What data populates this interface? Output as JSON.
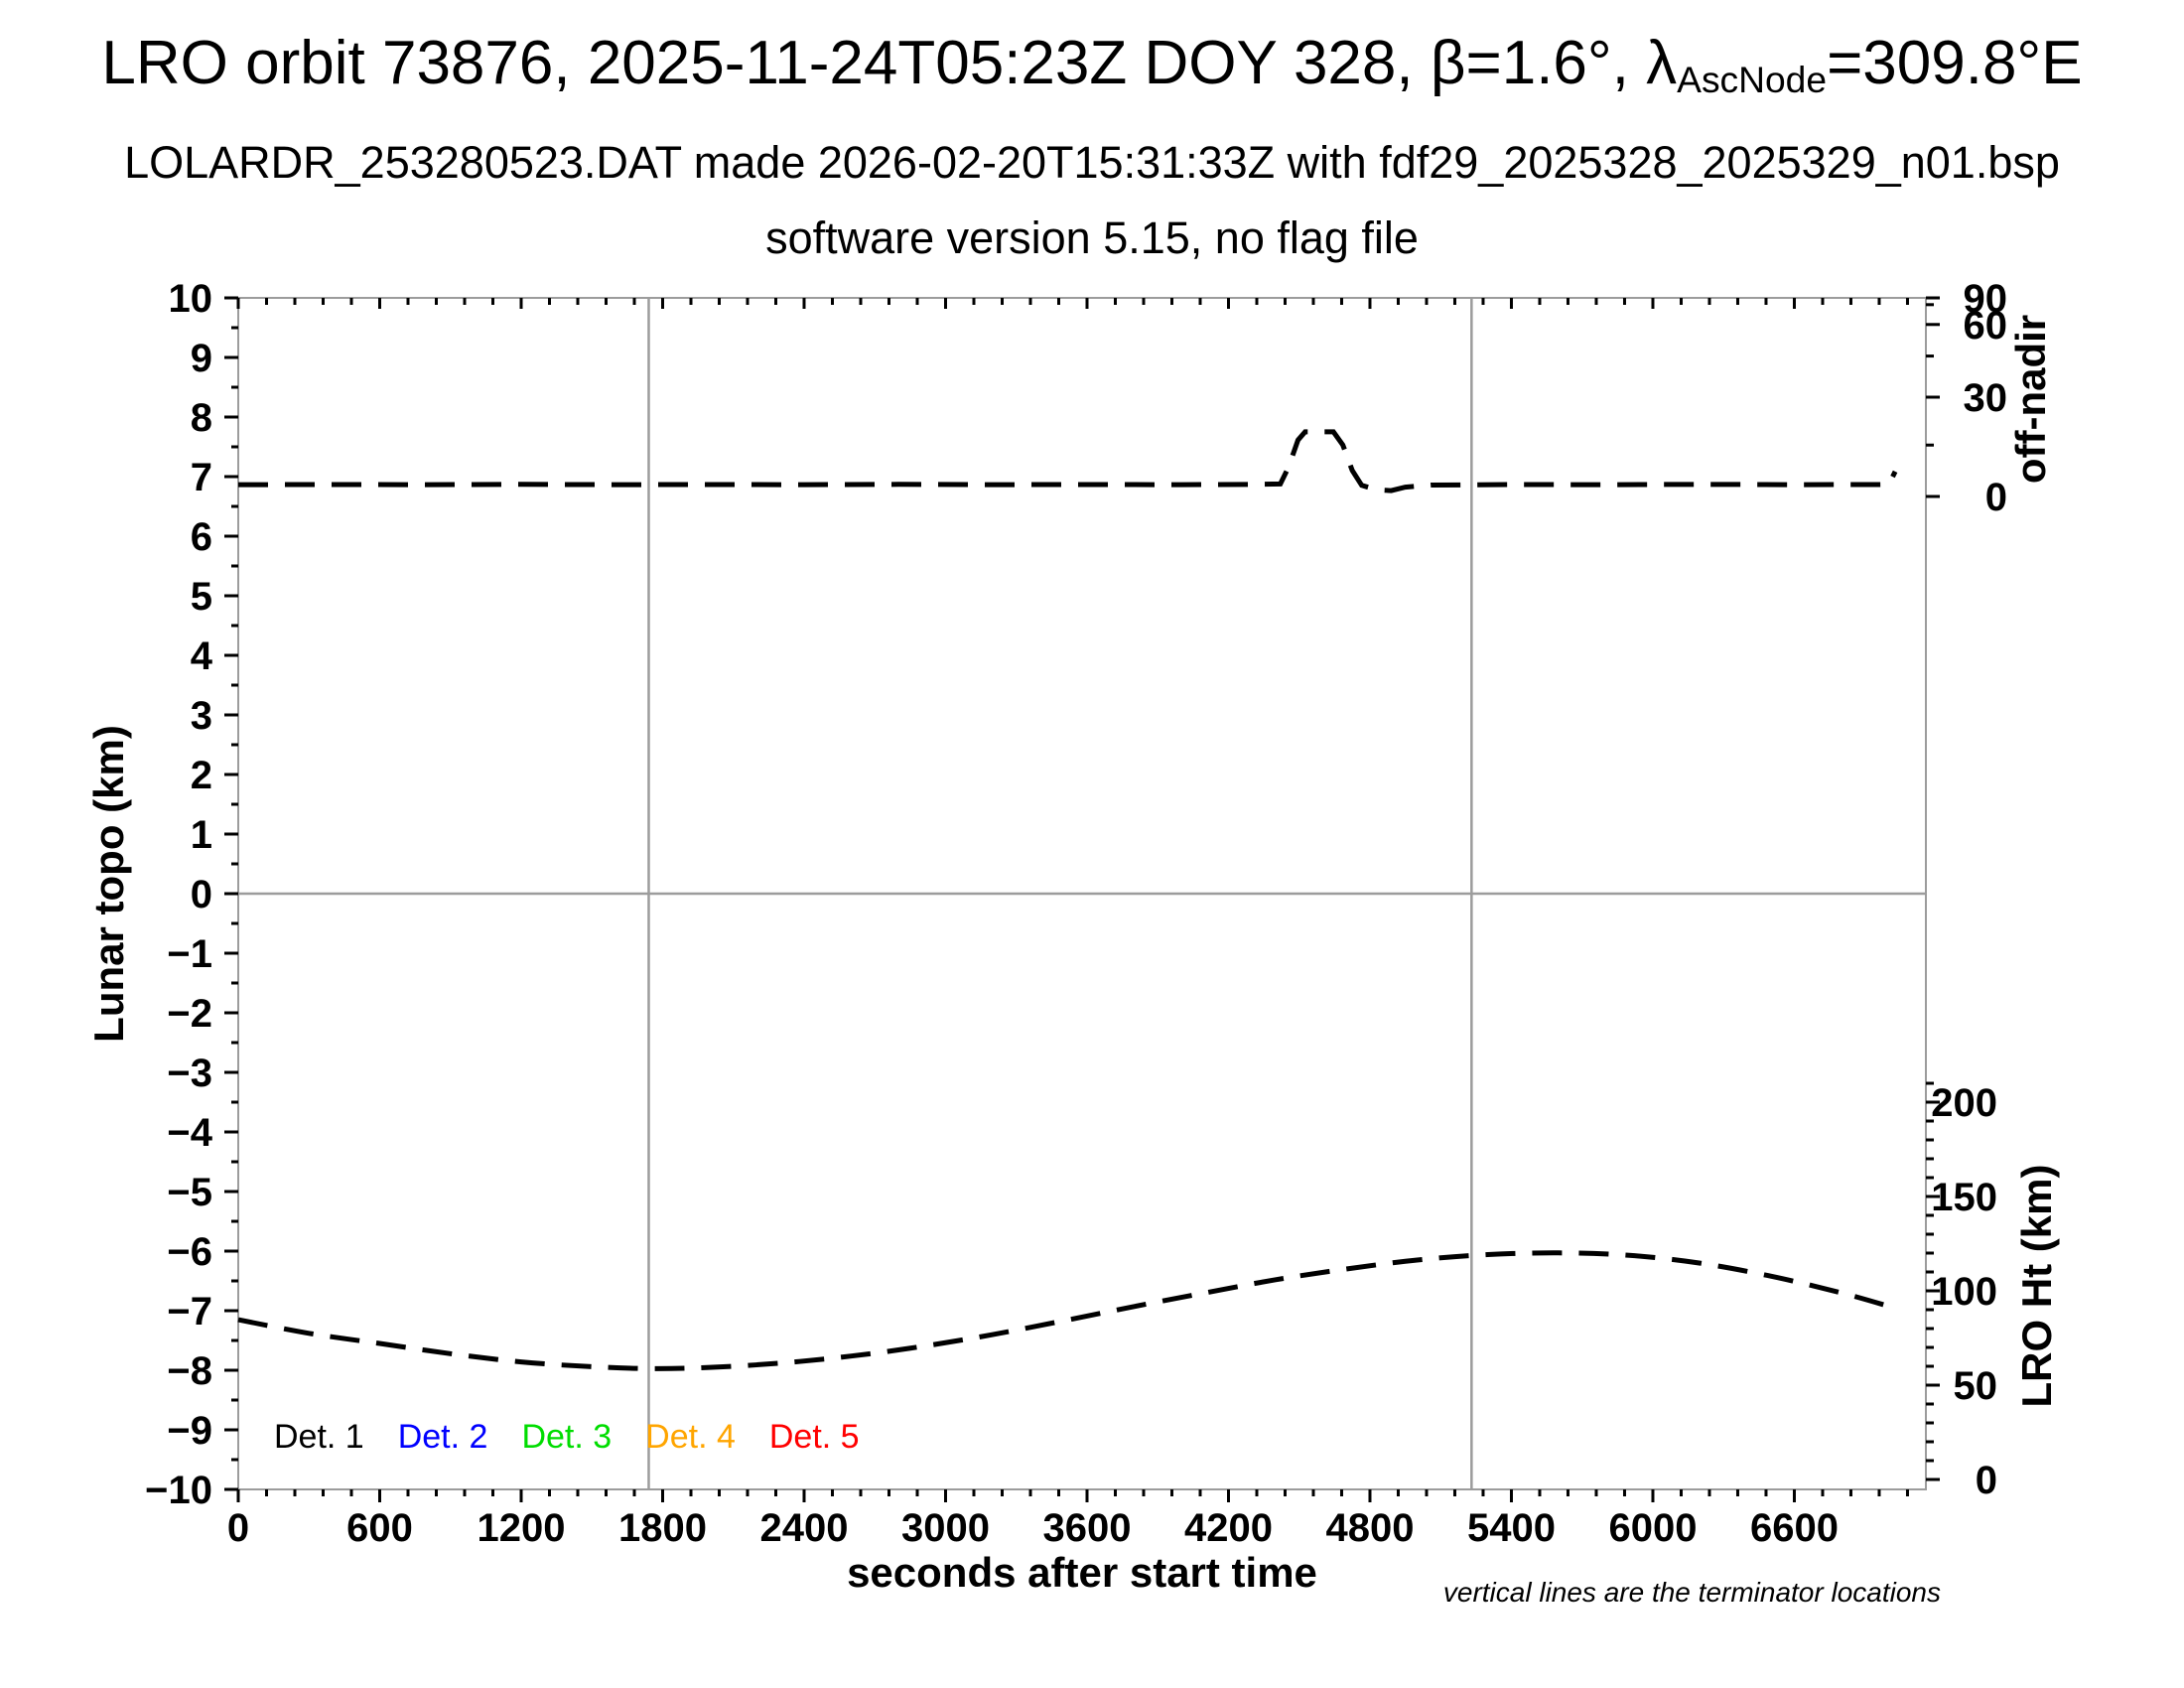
{
  "page": {
    "background": "#ffffff"
  },
  "title": {
    "prefix": "LRO orbit 73876, 2025-11-24T05:23Z DOY 328, β=1.6°, λ",
    "subscript": "AscNode",
    "suffix": "=309.8°E"
  },
  "subtitles": {
    "line1": "LOLARDR_253280523.DAT made 2026-02-20T15:31:33Z with fdf29_2025328_2025329_n01.bsp",
    "line2": "software version 5.15, no flag file"
  },
  "footnote": "vertical lines are the terminator locations",
  "legend": {
    "items": [
      {
        "label": "Det. 1",
        "color": "#000000"
      },
      {
        "label": "Det. 2",
        "color": "#0000ff"
      },
      {
        "label": "Det. 3",
        "color": "#00dd00"
      },
      {
        "label": "Det. 4",
        "color": "#ffa500"
      },
      {
        "label": "Det. 5",
        "color": "#ff0000"
      }
    ]
  },
  "chart_data": {
    "type": "line",
    "title": "LRO orbit 73876, 2025-11-24T05:23Z DOY 328, β=1.6°, λAscNode=309.8°E",
    "grid": "off",
    "frame_color": "#9c9c9c",
    "x_axis": {
      "label": "seconds after start time",
      "range_s": [
        0,
        7158
      ],
      "major_tick_step": 600,
      "minor_tick_step": 120,
      "tick_values": [
        0,
        600,
        1200,
        1800,
        2400,
        3000,
        3600,
        4200,
        4800,
        5400,
        6000,
        6600
      ],
      "tick_labels": [
        "0",
        "600",
        "1200",
        "1800",
        "2400",
        "3000",
        "3600",
        "4200",
        "4800",
        "5400",
        "6000",
        "6600"
      ]
    },
    "y_left_axis": {
      "label": "Lunar topo (km)",
      "range": [
        -10,
        10
      ],
      "major_tick_step": 1,
      "minor_tick_step": 0.5,
      "tick_values": [
        10,
        9,
        8,
        7,
        6,
        5,
        4,
        3,
        2,
        1,
        0,
        -1,
        -2,
        -3,
        -4,
        -5,
        -6,
        -7,
        -8,
        -9,
        -10
      ],
      "tick_labels": [
        "10",
        "9",
        "8",
        "7",
        "6",
        "5",
        "4",
        "3",
        "2",
        "1",
        "0",
        "−1",
        "−2",
        "−3",
        "−4",
        "−5",
        "−6",
        "−7",
        "−8",
        "−9",
        "−10"
      ]
    },
    "y_right_top_axis": {
      "label": "off-nadir",
      "unit": "degrees",
      "scale": "sine",
      "range_deg": [
        0,
        90
      ],
      "tick_values": [
        90,
        60,
        30,
        0
      ],
      "tick_labels": [
        "90",
        "60",
        "30",
        "0"
      ],
      "minor_tick_values": [
        75,
        45,
        15
      ]
    },
    "y_right_bottom_axis": {
      "label": "LRO Ht (km)",
      "range_km": [
        0,
        210
      ],
      "major_tick_step": 50,
      "minor_tick_step": 10,
      "tick_values": [
        200,
        150,
        100,
        50,
        0
      ],
      "tick_labels": [
        "200",
        "150",
        "100",
        "50",
        "0"
      ]
    },
    "zero_line_topo_km": 0,
    "terminator_lines_s": [
      1741,
      5231
    ],
    "series": [
      {
        "name": "off-nadir angle",
        "axis": "y_right_top",
        "color": "#000000",
        "style": "dashed",
        "points_s_deg": [
          [
            0,
            3.4
          ],
          [
            400,
            3.45
          ],
          [
            800,
            3.4
          ],
          [
            1200,
            3.5
          ],
          [
            1600,
            3.4
          ],
          [
            2000,
            3.45
          ],
          [
            2400,
            3.4
          ],
          [
            2800,
            3.5
          ],
          [
            3200,
            3.4
          ],
          [
            3600,
            3.45
          ],
          [
            4000,
            3.4
          ],
          [
            4300,
            3.5
          ],
          [
            4420,
            3.6
          ],
          [
            4455,
            8.5
          ],
          [
            4495,
            16.5
          ],
          [
            4525,
            19.0
          ],
          [
            4645,
            19.0
          ],
          [
            4685,
            15.0
          ],
          [
            4725,
            7.5
          ],
          [
            4765,
            3.2
          ],
          [
            4830,
            1.9
          ],
          [
            4890,
            1.7
          ],
          [
            4950,
            2.7
          ],
          [
            5060,
            3.3
          ],
          [
            5400,
            3.45
          ],
          [
            5800,
            3.4
          ],
          [
            6200,
            3.5
          ],
          [
            6600,
            3.4
          ],
          [
            6950,
            3.45
          ],
          [
            7000,
            3.5
          ],
          [
            7012,
            5.0
          ],
          [
            7028,
            7.2
          ]
        ]
      },
      {
        "name": "LRO height",
        "axis": "y_right_bottom",
        "color": "#000000",
        "style": "dashed",
        "points_s_km": [
          [
            0,
            84.7
          ],
          [
            300,
            77.5
          ],
          [
            600,
            72.1
          ],
          [
            900,
            66.7
          ],
          [
            1200,
            62.3
          ],
          [
            1500,
            59.8
          ],
          [
            1750,
            58.8
          ],
          [
            2000,
            59.4
          ],
          [
            2300,
            61.7
          ],
          [
            2600,
            65.4
          ],
          [
            2900,
            70.5
          ],
          [
            3200,
            76.8
          ],
          [
            3500,
            84.1
          ],
          [
            3800,
            91.7
          ],
          [
            4100,
            98.9
          ],
          [
            4400,
            105.9
          ],
          [
            4700,
            111.6
          ],
          [
            5000,
            116.3
          ],
          [
            5300,
            119.2
          ],
          [
            5600,
            120.1
          ],
          [
            5900,
            118.8
          ],
          [
            6200,
            114.7
          ],
          [
            6500,
            107.8
          ],
          [
            6800,
            98.9
          ],
          [
            7020,
            91.1
          ]
        ]
      }
    ]
  }
}
